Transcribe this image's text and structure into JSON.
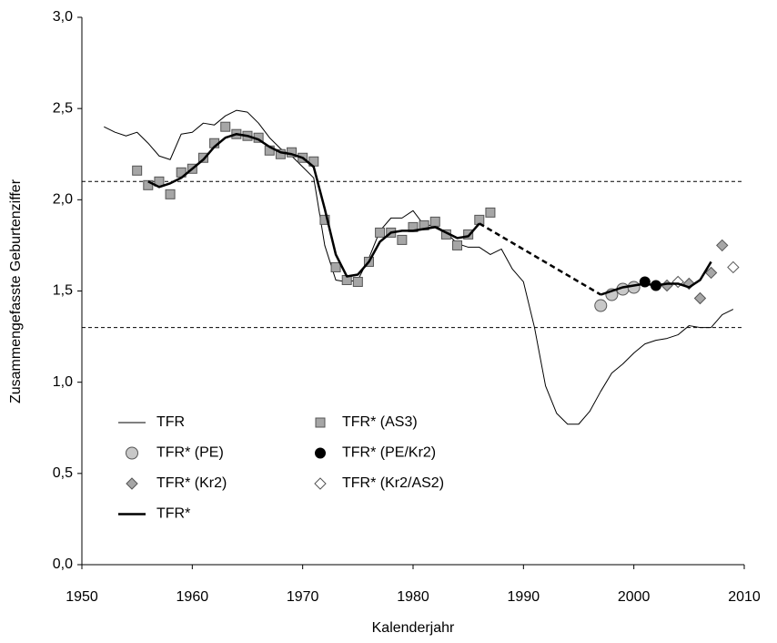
{
  "chart_data": {
    "type": "line",
    "xlabel": "Kalenderjahr",
    "ylabel": "Zusammengefasste Geburtenziffer",
    "xlim": [
      1950,
      2010
    ],
    "ylim": [
      0,
      3
    ],
    "xticks": [
      1950,
      1960,
      1970,
      1980,
      1990,
      2000,
      2010
    ],
    "yticks": [
      {
        "value": 0,
        "label": "0,0"
      },
      {
        "value": 0.5,
        "label": "0,5"
      },
      {
        "value": 1,
        "label": "1,0"
      },
      {
        "value": 1.5,
        "label": "1,5"
      },
      {
        "value": 2,
        "label": "2,0"
      },
      {
        "value": 2.5,
        "label": "2,5"
      },
      {
        "value": 3,
        "label": "3,0"
      }
    ],
    "reference_lines": [
      2.1,
      1.3
    ],
    "series": [
      {
        "name": "TFR",
        "kind": "line",
        "color": "#000000",
        "width": 1,
        "x": [
          1952,
          1953,
          1954,
          1955,
          1956,
          1957,
          1958,
          1959,
          1960,
          1961,
          1962,
          1963,
          1964,
          1965,
          1966,
          1967,
          1968,
          1969,
          1970,
          1971,
          1972,
          1973,
          1974,
          1975,
          1976,
          1977,
          1978,
          1979,
          1980,
          1981,
          1982,
          1983,
          1984,
          1985,
          1986,
          1987,
          1988,
          1989,
          1990,
          1991,
          1992,
          1993,
          1994,
          1995,
          1996,
          1997,
          1998,
          1999,
          2000,
          2001,
          2002,
          2003,
          2004,
          2005,
          2006,
          2007,
          2008,
          2009
        ],
        "values": [
          2.4,
          2.37,
          2.35,
          2.37,
          2.31,
          2.24,
          2.22,
          2.36,
          2.37,
          2.42,
          2.41,
          2.46,
          2.49,
          2.48,
          2.42,
          2.34,
          2.28,
          2.24,
          2.18,
          2.12,
          1.75,
          1.56,
          1.55,
          1.56,
          1.68,
          1.83,
          1.9,
          1.9,
          1.94,
          1.86,
          1.86,
          1.82,
          1.76,
          1.74,
          1.74,
          1.7,
          1.73,
          1.62,
          1.55,
          1.3,
          0.98,
          0.83,
          0.77,
          0.77,
          0.84,
          0.95,
          1.05,
          1.1,
          1.16,
          1.21,
          1.23,
          1.24,
          1.26,
          1.31,
          1.3,
          1.3,
          1.37,
          1.4
        ]
      },
      {
        "name": "TFR* (AS3)",
        "kind": "scatter",
        "marker": "square",
        "color": "#a6a6a6",
        "x": [
          1955,
          1956,
          1957,
          1958,
          1959,
          1960,
          1961,
          1962,
          1963,
          1964,
          1965,
          1966,
          1967,
          1968,
          1969,
          1970,
          1971,
          1972,
          1973,
          1974,
          1975,
          1976,
          1977,
          1978,
          1979,
          1980,
          1981,
          1982,
          1983,
          1984,
          1985,
          1986,
          1987
        ],
        "values": [
          2.16,
          2.08,
          2.1,
          2.03,
          2.15,
          2.17,
          2.23,
          2.31,
          2.4,
          2.36,
          2.35,
          2.34,
          2.27,
          2.25,
          2.26,
          2.23,
          2.21,
          1.89,
          1.63,
          1.56,
          1.55,
          1.66,
          1.82,
          1.82,
          1.78,
          1.85,
          1.86,
          1.88,
          1.81,
          1.75,
          1.81,
          1.89,
          1.93
        ]
      },
      {
        "name": "TFR* (PE)",
        "kind": "scatter",
        "marker": "circle",
        "color": "#c8c8c8",
        "x": [
          1997,
          1998,
          1999,
          2000
        ],
        "values": [
          1.42,
          1.48,
          1.51,
          1.52
        ]
      },
      {
        "name": "TFR* (PE/Kr2)",
        "kind": "scatter",
        "marker": "circle-small",
        "color": "#000000",
        "x": [
          2001,
          2002
        ],
        "values": [
          1.55,
          1.53
        ]
      },
      {
        "name": "TFR* (Kr2)",
        "kind": "scatter",
        "marker": "diamond",
        "color": "#a6a6a6",
        "x": [
          2003,
          2005,
          2006,
          2007,
          2008
        ],
        "values": [
          1.53,
          1.54,
          1.46,
          1.6,
          1.75
        ]
      },
      {
        "name": "TFR* (Kr2/AS2)",
        "kind": "scatter",
        "marker": "diamond",
        "color": "#ffffff",
        "x": [
          2004,
          2009
        ],
        "values": [
          1.55,
          1.63
        ]
      },
      {
        "name": "TFR*",
        "kind": "line",
        "color": "#000000",
        "width": 2.5,
        "dashed_between": [
          1986,
          1997
        ],
        "x": [
          1956,
          1957,
          1958,
          1959,
          1960,
          1961,
          1962,
          1963,
          1964,
          1965,
          1966,
          1967,
          1968,
          1969,
          1970,
          1971,
          1972,
          1973,
          1974,
          1975,
          1976,
          1977,
          1978,
          1979,
          1980,
          1981,
          1982,
          1983,
          1984,
          1985,
          1986,
          1997,
          1998,
          1999,
          2000,
          2001,
          2002,
          2003,
          2004,
          2005,
          2006,
          2007
        ],
        "values": [
          2.1,
          2.07,
          2.09,
          2.12,
          2.17,
          2.22,
          2.29,
          2.34,
          2.36,
          2.35,
          2.33,
          2.29,
          2.26,
          2.25,
          2.23,
          2.18,
          1.95,
          1.7,
          1.58,
          1.59,
          1.66,
          1.77,
          1.82,
          1.83,
          1.83,
          1.84,
          1.85,
          1.82,
          1.79,
          1.8,
          1.87,
          1.48,
          1.5,
          1.52,
          1.53,
          1.54,
          1.53,
          1.54,
          1.54,
          1.52,
          1.56,
          1.66
        ]
      }
    ]
  }
}
